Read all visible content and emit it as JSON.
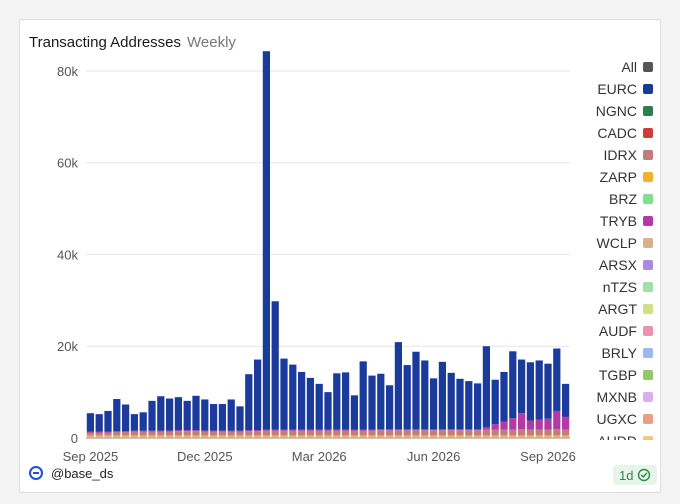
{
  "header": {
    "title": "Transacting Addresses",
    "subtitle": "Weekly"
  },
  "footer": {
    "handle": "@base_ds",
    "badge": "1d"
  },
  "colors": {
    "EURC": "#1a3a9c",
    "gridline": "#e6e6e6",
    "axis": "#555555"
  },
  "chart_data": {
    "type": "bar",
    "stacked": true,
    "ylim": [
      0,
      85000
    ],
    "yticks": [
      0,
      20000,
      40000,
      60000,
      80000
    ],
    "ytick_labels": [
      "0",
      "20k",
      "40k",
      "60k",
      "80k"
    ],
    "xtick_labels": [
      "Sep 2025",
      "Dec 2025",
      "Mar 2026",
      "Jun 2026",
      "Sep 2026"
    ],
    "xtick_positions": [
      0,
      13,
      26,
      39,
      52
    ],
    "categories_count": 55,
    "series": [
      {
        "name": "EURC",
        "color": "#1a3a9c",
        "values": [
          4000,
          3800,
          4500,
          7000,
          5800,
          3600,
          4000,
          6500,
          7500,
          7000,
          7200,
          6400,
          7500,
          6800,
          5800,
          5800,
          6800,
          5300,
          12200,
          15400,
          82500,
          28000,
          15500,
          14200,
          12600,
          11300,
          10000,
          8200,
          12300,
          12500,
          7500,
          14900,
          11800,
          12100,
          9600,
          19000,
          14000,
          16900,
          15000,
          11100,
          14700,
          12300,
          11000,
          10500,
          10000,
          17600,
          9700,
          10800,
          14600,
          11700,
          12700,
          12900,
          12000,
          13600,
          7200
        ]
      },
      {
        "name": "TRYB",
        "color": "#b23aa6",
        "values": [
          200,
          200,
          200,
          200,
          200,
          200,
          200,
          200,
          200,
          200,
          200,
          200,
          200,
          200,
          200,
          200,
          200,
          200,
          200,
          200,
          200,
          200,
          200,
          200,
          200,
          200,
          200,
          200,
          200,
          200,
          200,
          200,
          200,
          200,
          200,
          200,
          200,
          200,
          200,
          200,
          200,
          200,
          200,
          200,
          200,
          600,
          1200,
          1800,
          2500,
          3500,
          2000,
          2200,
          2400,
          4000,
          2800
        ]
      },
      {
        "name": "IDRX",
        "color": "#c47b7b",
        "values": [
          600,
          600,
          600,
          700,
          700,
          800,
          800,
          800,
          800,
          800,
          900,
          900,
          900,
          800,
          800,
          800,
          800,
          800,
          900,
          900,
          1000,
          1000,
          1000,
          1000,
          1000,
          1000,
          1000,
          1000,
          1000,
          1000,
          1000,
          1000,
          1000,
          1100,
          1100,
          1100,
          1100,
          1100,
          1100,
          1100,
          1100,
          1100,
          1100,
          1100,
          1100,
          1200,
          1200,
          1200,
          1200,
          1300,
          1200,
          1200,
          1200,
          1300,
          1200
        ]
      },
      {
        "name": "ZARP",
        "color": "#e8a63a",
        "values": [
          300,
          300,
          300,
          300,
          300,
          300,
          300,
          300,
          300,
          300,
          300,
          300,
          300,
          300,
          300,
          300,
          300,
          300,
          300,
          300,
          300,
          300,
          300,
          300,
          300,
          300,
          300,
          300,
          300,
          300,
          300,
          300,
          300,
          300,
          300,
          300,
          300,
          300,
          300,
          300,
          300,
          300,
          300,
          300,
          300,
          300,
          300,
          300,
          300,
          300,
          300,
          300,
          300,
          300,
          300
        ]
      },
      {
        "name": "WCLP",
        "color": "#d8b08c",
        "values": [
          300,
          300,
          300,
          300,
          300,
          300,
          300,
          300,
          300,
          300,
          300,
          300,
          300,
          300,
          300,
          300,
          300,
          300,
          300,
          300,
          300,
          300,
          300,
          300,
          300,
          300,
          300,
          300,
          300,
          300,
          300,
          300,
          300,
          300,
          300,
          300,
          300,
          300,
          300,
          300,
          300,
          300,
          300,
          300,
          300,
          300,
          300,
          300,
          300,
          300,
          300,
          300,
          300,
          300,
          300
        ]
      }
    ]
  },
  "legend": [
    {
      "label": "All",
      "color": "#555555"
    },
    {
      "label": "EURC",
      "color": "#1a3a9c"
    },
    {
      "label": "NGNC",
      "color": "#2e7d4f"
    },
    {
      "label": "CADC",
      "color": "#d03a3a"
    },
    {
      "label": "IDRX",
      "color": "#c47b7b"
    },
    {
      "label": "ZARP",
      "color": "#f0b132"
    },
    {
      "label": "BRZ",
      "color": "#7ee08a"
    },
    {
      "label": "TRYB",
      "color": "#b23aa6"
    },
    {
      "label": "WCLP",
      "color": "#d8b08c"
    },
    {
      "label": "ARSX",
      "color": "#a88be0"
    },
    {
      "label": "nTZS",
      "color": "#9fe0a8"
    },
    {
      "label": "ARGT",
      "color": "#cfe08a"
    },
    {
      "label": "AUDF",
      "color": "#f08fb0"
    },
    {
      "label": "BRLY",
      "color": "#9cb8f0"
    },
    {
      "label": "TGBP",
      "color": "#8fc96b"
    },
    {
      "label": "MXNB",
      "color": "#d9b0ec"
    },
    {
      "label": "UGXC",
      "color": "#e8a080"
    },
    {
      "label": "AUDD",
      "color": "#f0c878"
    }
  ]
}
